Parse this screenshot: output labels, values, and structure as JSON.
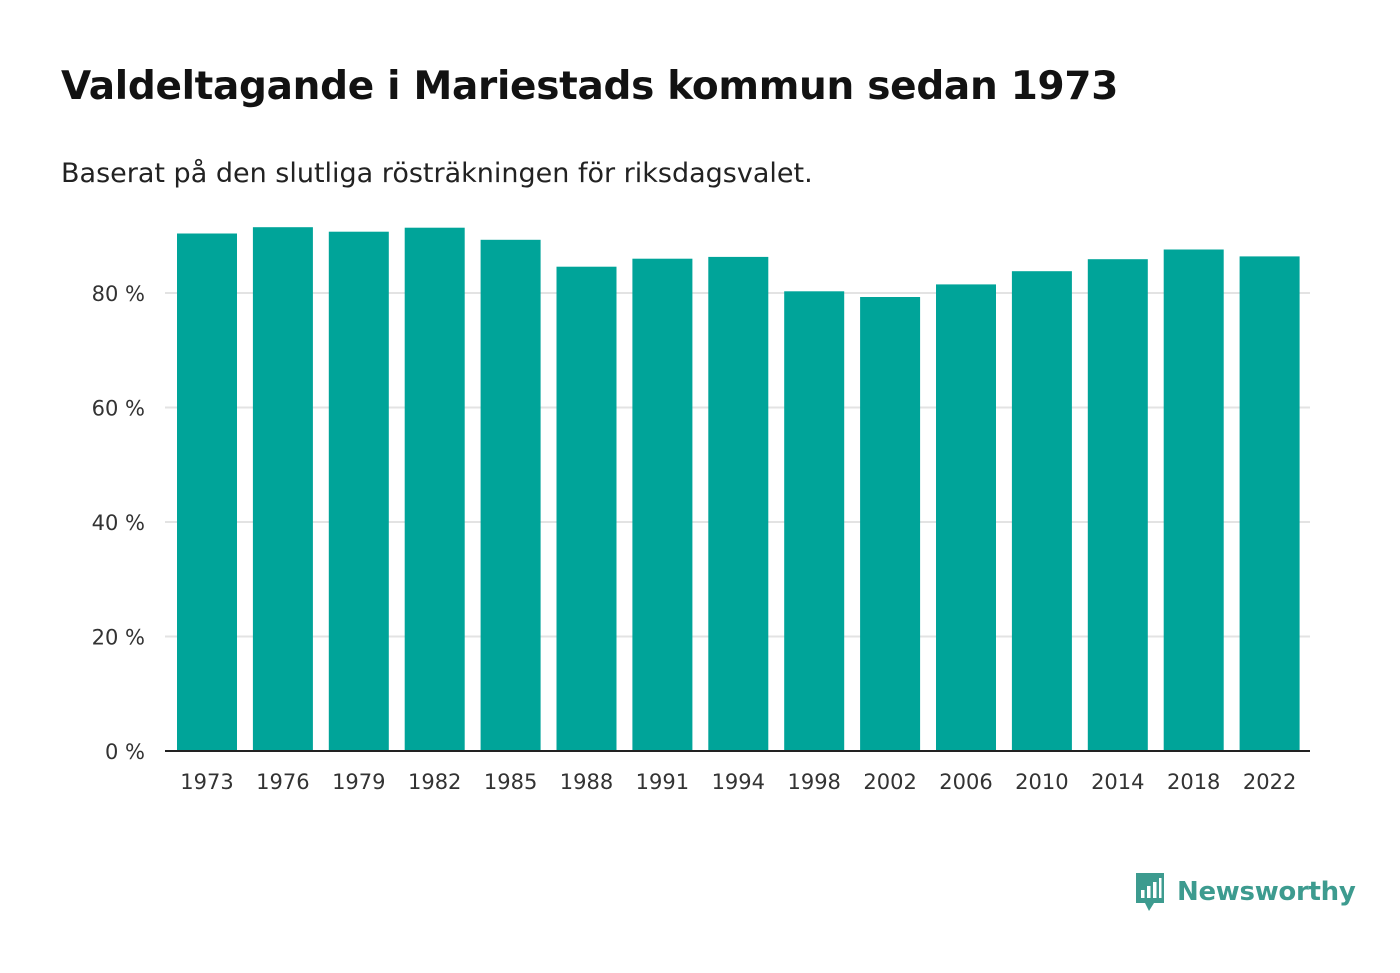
{
  "header": {
    "title": "Valdeltagande i Mariestads kommun sedan 1973",
    "subtitle": "Baserat på den slutliga rösträkningen för riksdagsvalet."
  },
  "brand": {
    "name": "Newsworthy",
    "color": "#3d9b8f"
  },
  "colors": {
    "bar": "#00a499",
    "grid": "#e3e3e3",
    "axis": "#222222"
  },
  "chart_data": {
    "type": "bar",
    "title": "Valdeltagande i Mariestads kommun sedan 1973",
    "subtitle": "Baserat på den slutliga rösträkningen för riksdagsvalet.",
    "xlabel": "",
    "ylabel": "",
    "categories": [
      "1973",
      "1976",
      "1979",
      "1982",
      "1985",
      "1988",
      "1991",
      "1994",
      "1998",
      "2002",
      "2006",
      "2010",
      "2014",
      "2018",
      "2022"
    ],
    "values": [
      90.4,
      91.5,
      90.7,
      91.4,
      89.3,
      84.6,
      86.0,
      86.3,
      80.3,
      79.3,
      81.5,
      83.8,
      85.9,
      87.6,
      86.4
    ],
    "ylim": [
      0,
      100
    ],
    "yticks": [
      0,
      20,
      40,
      60,
      80
    ],
    "ytick_labels": [
      "0 %",
      "20 %",
      "40 %",
      "60 %",
      "80 %"
    ],
    "grid": true,
    "legend": "none"
  }
}
